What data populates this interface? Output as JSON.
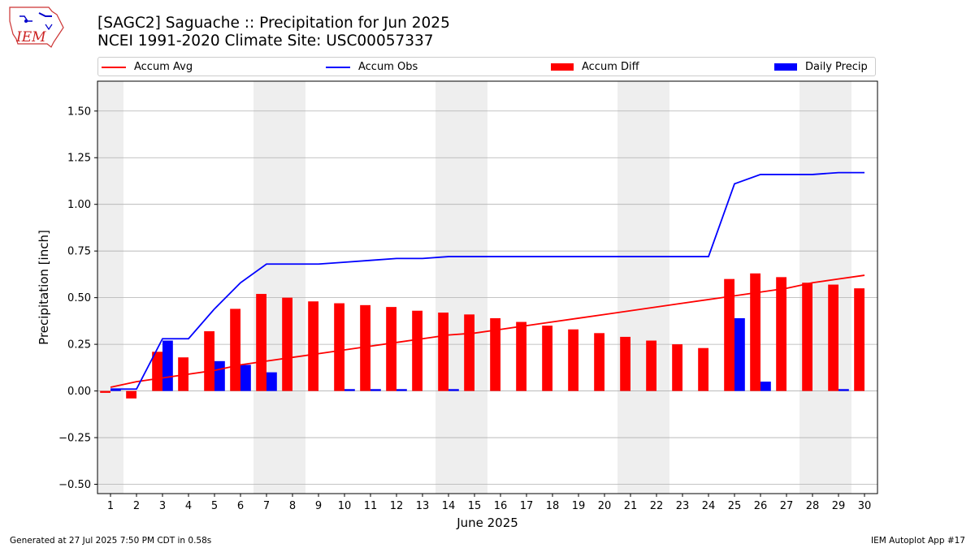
{
  "header": {
    "title": "[SAGC2] Saguache :: Precipitation for Jun 2025",
    "subtitle": "NCEI 1991-2020 Climate Site: USC00057337",
    "logo_text": "IEM"
  },
  "legend": {
    "items": [
      {
        "label": "Accum Avg",
        "color": "#ff0000",
        "kind": "line"
      },
      {
        "label": "Accum Obs",
        "color": "#0000ff",
        "kind": "line"
      },
      {
        "label": "Accum Diff",
        "color": "#ff0000",
        "kind": "bar"
      },
      {
        "label": "Daily Precip",
        "color": "#0000ff",
        "kind": "bar"
      }
    ]
  },
  "footer": {
    "left": "Generated at 27 Jul 2025 7:50 PM CDT in 0.58s",
    "right": "IEM Autoplot App #17"
  },
  "chart_data": {
    "type": "bar",
    "xlabel": "June 2025",
    "ylabel": "Precipitation [inch]",
    "ylim": [
      -0.55,
      1.66
    ],
    "xlim": [
      0.5,
      30.5
    ],
    "yticks": [
      -0.5,
      -0.25,
      0.0,
      0.25,
      0.5,
      0.75,
      1.0,
      1.25,
      1.5
    ],
    "ytick_labels": [
      "−0.50",
      "−0.25",
      "0.00",
      "0.25",
      "0.50",
      "0.75",
      "1.00",
      "1.25",
      "1.50"
    ],
    "grid": true,
    "legend_position": "top",
    "days": [
      1,
      2,
      3,
      4,
      5,
      6,
      7,
      8,
      9,
      10,
      11,
      12,
      13,
      14,
      15,
      16,
      17,
      18,
      19,
      20,
      21,
      22,
      23,
      24,
      25,
      26,
      27,
      28,
      29,
      30
    ],
    "weekend_days": [
      1,
      7,
      8,
      14,
      15,
      21,
      22,
      28,
      29
    ],
    "series": [
      {
        "name": "Accum Avg",
        "type": "line",
        "color": "#ff0000",
        "values": [
          0.02,
          0.05,
          0.07,
          0.09,
          0.11,
          0.14,
          0.16,
          0.18,
          0.2,
          0.22,
          0.24,
          0.26,
          0.28,
          0.3,
          0.31,
          0.33,
          0.35,
          0.37,
          0.39,
          0.41,
          0.43,
          0.45,
          0.47,
          0.49,
          0.51,
          0.53,
          0.55,
          0.58,
          0.6,
          0.62
        ]
      },
      {
        "name": "Accum Obs",
        "type": "line",
        "color": "#0000ff",
        "values": [
          0.01,
          0.01,
          0.28,
          0.28,
          0.44,
          0.58,
          0.68,
          0.68,
          0.68,
          0.69,
          0.7,
          0.71,
          0.71,
          0.72,
          0.72,
          0.72,
          0.72,
          0.72,
          0.72,
          0.72,
          0.72,
          0.72,
          0.72,
          0.72,
          1.11,
          1.16,
          1.16,
          1.16,
          1.17,
          1.17
        ]
      },
      {
        "name": "Accum Diff",
        "type": "bar",
        "color": "#ff0000",
        "values": [
          -0.01,
          -0.04,
          0.21,
          0.18,
          0.32,
          0.44,
          0.52,
          0.5,
          0.48,
          0.47,
          0.46,
          0.45,
          0.43,
          0.42,
          0.41,
          0.39,
          0.37,
          0.35,
          0.33,
          0.31,
          0.29,
          0.27,
          0.25,
          0.23,
          0.6,
          0.63,
          0.61,
          0.58,
          0.57,
          0.55
        ]
      },
      {
        "name": "Daily Precip",
        "type": "bar",
        "color": "#0000ff",
        "values": [
          0.01,
          0.0,
          0.27,
          0.0,
          0.16,
          0.14,
          0.1,
          0.0,
          0.0,
          0.01,
          0.01,
          0.01,
          0.0,
          0.01,
          0.0,
          0.0,
          0.0,
          0.0,
          0.0,
          0.0,
          0.0,
          0.0,
          0.0,
          0.0,
          0.39,
          0.05,
          0.0,
          0.0,
          0.01,
          0.0
        ]
      }
    ]
  }
}
